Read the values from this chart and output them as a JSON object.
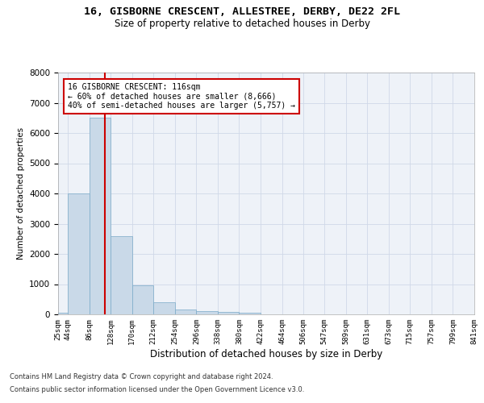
{
  "title": "16, GISBORNE CRESCENT, ALLESTREE, DERBY, DE22 2FL",
  "subtitle": "Size of property relative to detached houses in Derby",
  "xlabel": "Distribution of detached houses by size in Derby",
  "ylabel": "Number of detached properties",
  "bin_edges": [
    25,
    44,
    86,
    128,
    170,
    212,
    254,
    296,
    338,
    380,
    422,
    464,
    506,
    547,
    589,
    631,
    673,
    715,
    757,
    799,
    841
  ],
  "bar_heights": [
    50,
    4000,
    6500,
    2600,
    950,
    400,
    150,
    100,
    80,
    50,
    0,
    0,
    0,
    0,
    0,
    0,
    0,
    0,
    0,
    0
  ],
  "bar_color": "#c9d9e8",
  "bar_edgecolor": "#7aaac8",
  "grid_color": "#d0d8e8",
  "bg_color": "#eef2f8",
  "red_line_x": 116,
  "red_line_color": "#cc0000",
  "ylim": [
    0,
    8000
  ],
  "yticks": [
    0,
    1000,
    2000,
    3000,
    4000,
    5000,
    6000,
    7000,
    8000
  ],
  "annotation_text": "16 GISBORNE CRESCENT: 116sqm\n← 60% of detached houses are smaller (8,666)\n40% of semi-detached houses are larger (5,757) →",
  "annotation_box_color": "#ffffff",
  "annotation_box_edgecolor": "#cc0000",
  "footnote1": "Contains HM Land Registry data © Crown copyright and database right 2024.",
  "footnote2": "Contains public sector information licensed under the Open Government Licence v3.0."
}
